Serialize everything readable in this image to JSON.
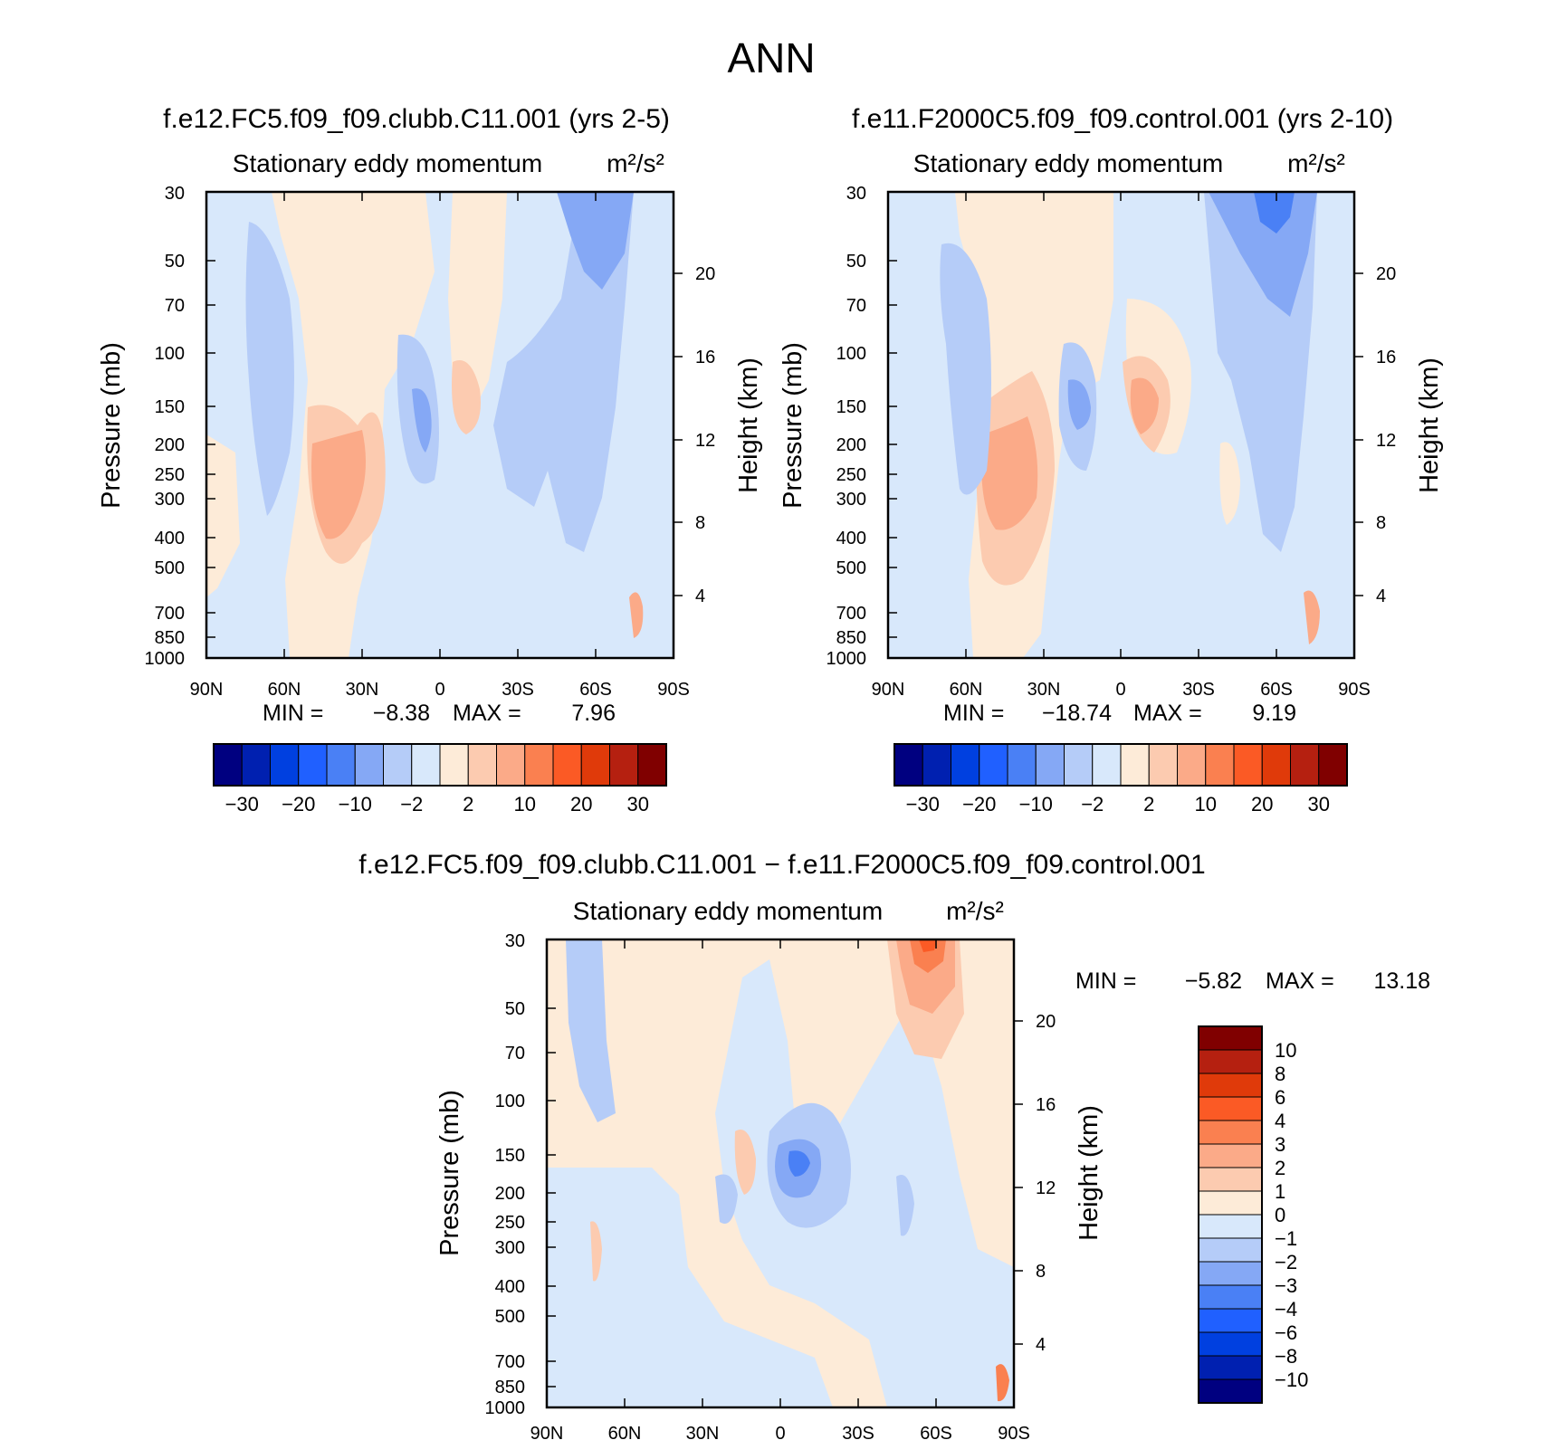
{
  "figure": {
    "title": "ANN"
  },
  "panels": [
    {
      "id": "p1",
      "case_label": "f.e12.FC5.f09_f09.clubb.C11.001 (yrs 2-5)",
      "plot_title": "Stationary eddy momentum",
      "units": "m²/s²",
      "left_axis_label": "Pressure (mb)",
      "right_axis_label": "Height (km)",
      "min_label": "MIN =",
      "min_value": "-8.38",
      "max_label": "MAX =",
      "max_value": "7.96"
    },
    {
      "id": "p2",
      "case_label": "f.e11.F2000C5.f09_f09.control.001 (yrs 2-10)",
      "plot_title": "Stationary eddy momentum",
      "units": "m²/s²",
      "left_axis_label": "Pressure (mb)",
      "right_axis_label": "Height (km)",
      "min_label": "MIN =",
      "min_value": "-18.74",
      "max_label": "MAX =",
      "max_value": "9.19"
    },
    {
      "id": "p3",
      "case_label": "f.e12.FC5.f09_f09.clubb.C11.001 - f.e11.F2000C5.f09_f09.control.001",
      "plot_title": "Stationary eddy momentum",
      "units": "m²/s²",
      "left_axis_label": "Pressure (mb)",
      "right_axis_label": "Height (km)",
      "min_label": "MIN =",
      "min_value": "-5.82",
      "max_label": "MAX =",
      "max_value": "13.18"
    }
  ],
  "colorbar_horizontal": {
    "colors": [
      "#000080",
      "#0020b0",
      "#0040e0",
      "#2060ff",
      "#4a80f5",
      "#85a8f5",
      "#b5ccf8",
      "#d8e8fb",
      "#fdebd8",
      "#fccbb0",
      "#fbaa88",
      "#fa8050",
      "#fb5a25",
      "#e03a0a",
      "#b52010",
      "#800000"
    ],
    "labels": [
      "-30",
      "-20",
      "-10",
      "-2",
      "2",
      "10",
      "20",
      "30"
    ]
  },
  "colorbar_vertical": {
    "colors": [
      "#800000",
      "#b52010",
      "#e03a0a",
      "#fb5a25",
      "#fa8050",
      "#fbaa88",
      "#fccbb0",
      "#fdebd8",
      "#d8e8fb",
      "#b5ccf8",
      "#85a8f5",
      "#4a80f5",
      "#2060ff",
      "#0040e0",
      "#0020b0",
      "#000080"
    ],
    "labels": [
      "10",
      "8",
      "6",
      "4",
      "3",
      "2",
      "1",
      "0",
      "-1",
      "-2",
      "-3",
      "-4",
      "-6",
      "-8",
      "-10"
    ]
  },
  "chart_data": [
    {
      "type": "heatmap",
      "title": "Stationary eddy momentum",
      "units": "m²/s²",
      "xlabel": "",
      "ylabel": "Pressure (mb)",
      "y2label": "Height (km)",
      "xticklabels": [
        "90N",
        "60N",
        "30N",
        "0",
        "30S",
        "60S",
        "90S"
      ],
      "x": [
        90,
        60,
        30,
        0,
        -30,
        -60,
        -90
      ],
      "yticklabels": [
        "30",
        "50",
        "70",
        "100",
        "150",
        "200",
        "250",
        "300",
        "400",
        "500",
        "700",
        "850",
        "1000"
      ],
      "y2ticklabels": [
        "20",
        "16",
        "12",
        "8",
        "4"
      ],
      "levels": [
        -30,
        -25,
        -20,
        -15,
        -10,
        -5,
        -2,
        0,
        2,
        5,
        10,
        15,
        20,
        25,
        30
      ],
      "min": -8.38,
      "max": 7.96,
      "features": [
        {
          "lat": 50,
          "p": 300,
          "value": 4,
          "desc": "positive max near 50N 250-300mb"
        },
        {
          "lat": 10,
          "p": 150,
          "value": -7,
          "desc": "negative core just N of equator near 150mb"
        },
        {
          "lat": -10,
          "p": 130,
          "value": 4,
          "desc": "positive core south of equator"
        },
        {
          "lat": -65,
          "p": 40,
          "value": -5,
          "desc": "negative upper maximum near 60S"
        }
      ]
    },
    {
      "type": "heatmap",
      "title": "Stationary eddy momentum",
      "units": "m²/s²",
      "xlabel": "",
      "ylabel": "Pressure (mb)",
      "y2label": "Height (km)",
      "xticklabels": [
        "90N",
        "60N",
        "30N",
        "0",
        "30S",
        "60S",
        "90S"
      ],
      "x": [
        90,
        60,
        30,
        0,
        -30,
        -60,
        -90
      ],
      "yticklabels": [
        "30",
        "50",
        "70",
        "100",
        "150",
        "200",
        "250",
        "300",
        "400",
        "500",
        "700",
        "850",
        "1000"
      ],
      "y2ticklabels": [
        "20",
        "16",
        "12",
        "8",
        "4"
      ],
      "levels": [
        -30,
        -25,
        -20,
        -15,
        -10,
        -5,
        -2,
        0,
        2,
        5,
        10,
        15,
        20,
        25,
        30
      ],
      "min": -18.74,
      "max": 9.19,
      "features": [
        {
          "lat": 42,
          "p": 280,
          "value": 7,
          "desc": "positive max near 40-45N"
        },
        {
          "lat": 10,
          "p": 150,
          "value": -8,
          "desc": "negative core north of equator"
        },
        {
          "lat": -10,
          "p": 150,
          "value": 6,
          "desc": "positive core south of equator"
        },
        {
          "lat": -60,
          "p": 35,
          "value": -15,
          "desc": "strong negative upper max near 60S"
        }
      ]
    },
    {
      "type": "heatmap",
      "title": "Stationary eddy momentum",
      "units": "m²/s²",
      "xlabel": "",
      "ylabel": "Pressure (mb)",
      "y2label": "Height (km)",
      "xticklabels": [
        "90N",
        "60N",
        "30N",
        "0",
        "30S",
        "60S",
        "90S"
      ],
      "x": [
        90,
        60,
        30,
        0,
        -30,
        -60,
        -90
      ],
      "yticklabels": [
        "30",
        "50",
        "70",
        "100",
        "150",
        "200",
        "250",
        "300",
        "400",
        "500",
        "700",
        "850",
        "1000"
      ],
      "y2ticklabels": [
        "20",
        "16",
        "12",
        "8",
        "4"
      ],
      "levels": [
        -10,
        -8,
        -6,
        -4,
        -3,
        -2,
        -1,
        0,
        1,
        2,
        3,
        4,
        6,
        8,
        10
      ],
      "min": -5.82,
      "max": 13.18,
      "features": [
        {
          "lat": -60,
          "p": 35,
          "value": 6,
          "desc": "positive difference max near 60S upper levels"
        },
        {
          "lat": -10,
          "p": 160,
          "value": -5,
          "desc": "negative difference core south of equator"
        },
        {
          "lat": 15,
          "p": 160,
          "value": 2,
          "desc": "positive difference north of equator"
        }
      ]
    }
  ]
}
